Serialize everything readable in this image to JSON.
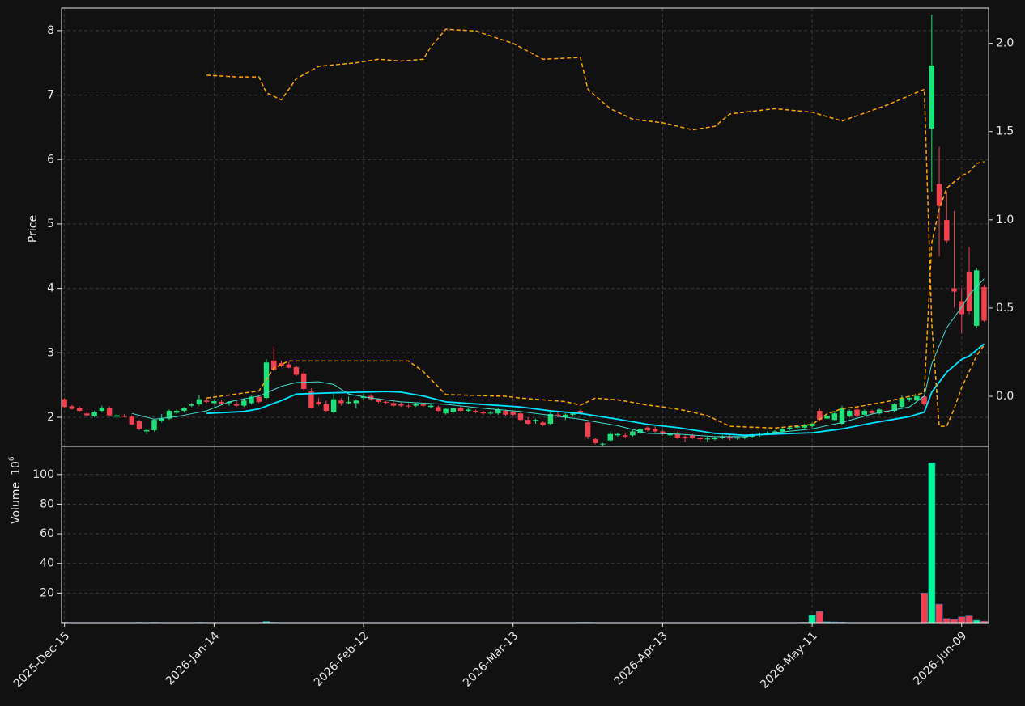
{
  "chart_data": {
    "type": "candlestick",
    "ylabel": "Price",
    "grid": true,
    "up_color": "#1de27a",
    "down_color": "#f2414f",
    "xlim": [
      -0.4,
      123.6
    ],
    "xticks": [
      {
        "value": 0,
        "label": "2025-Dec-15"
      },
      {
        "value": 20,
        "label": "2026-Jan-14"
      },
      {
        "value": 40,
        "label": "2026-Feb-12"
      },
      {
        "value": 60,
        "label": "2026-Mar-13"
      },
      {
        "value": 80,
        "label": "2026-Apr-13"
      },
      {
        "value": 100,
        "label": "2026-May-11"
      },
      {
        "value": 120,
        "label": "2026-Jun-09"
      }
    ],
    "ylim": [
      1.548,
      8.35
    ],
    "yticks": [
      2,
      3,
      4,
      5,
      6,
      7,
      8
    ],
    "y2lim": [
      -0.284,
      2.2
    ],
    "y2ticks": [
      {
        "value": 0,
        "label": "0.0"
      },
      0.5,
      {
        "value": 1,
        "label": "1.0"
      },
      1.5,
      {
        "value": 2,
        "label": "2.0"
      }
    ],
    "ohlc": [
      [
        2.28,
        2.3,
        2.15,
        2.16
      ],
      [
        2.17,
        2.19,
        2.12,
        2.13
      ],
      [
        2.15,
        2.17,
        2.08,
        2.1
      ],
      [
        2.06,
        2.08,
        2.02,
        2.03
      ],
      [
        2.02,
        2.1,
        2.0,
        2.08
      ],
      [
        2.1,
        2.18,
        2.08,
        2.15
      ],
      [
        2.15,
        2.17,
        2.02,
        2.03
      ],
      [
        2.01,
        2.05,
        1.98,
        2.03
      ],
      [
        2.02,
        2.05,
        2.0,
        2.01
      ],
      [
        2.01,
        2.03,
        1.88,
        1.89
      ],
      [
        1.94,
        1.96,
        1.8,
        1.82
      ],
      [
        1.78,
        1.82,
        1.74,
        1.8
      ],
      [
        1.8,
        1.98,
        1.78,
        1.96
      ],
      [
        1.95,
        2.05,
        1.92,
        1.98
      ],
      [
        1.98,
        2.12,
        1.96,
        2.1
      ],
      [
        2.07,
        2.12,
        2.05,
        2.1
      ],
      [
        2.1,
        2.16,
        2.08,
        2.14
      ],
      [
        2.18,
        2.22,
        2.16,
        2.2
      ],
      [
        2.2,
        2.35,
        2.18,
        2.28
      ],
      [
        2.26,
        2.3,
        2.22,
        2.24
      ],
      [
        2.22,
        2.26,
        2.2,
        2.25
      ],
      [
        2.24,
        2.27,
        2.2,
        2.21
      ],
      [
        2.22,
        2.25,
        2.18,
        2.24
      ],
      [
        2.2,
        2.28,
        2.16,
        2.18
      ],
      [
        2.18,
        2.3,
        2.16,
        2.26
      ],
      [
        2.22,
        2.34,
        2.2,
        2.32
      ],
      [
        2.32,
        2.34,
        2.22,
        2.24
      ],
      [
        2.3,
        2.9,
        2.28,
        2.85
      ],
      [
        2.88,
        3.1,
        2.72,
        2.74
      ],
      [
        2.84,
        2.88,
        2.78,
        2.8
      ],
      [
        2.82,
        2.86,
        2.76,
        2.77
      ],
      [
        2.78,
        2.8,
        2.64,
        2.66
      ],
      [
        2.68,
        2.72,
        2.4,
        2.44
      ],
      [
        2.4,
        2.45,
        2.14,
        2.15
      ],
      [
        2.24,
        2.3,
        2.18,
        2.2
      ],
      [
        2.2,
        2.26,
        2.08,
        2.1
      ],
      [
        2.08,
        2.36,
        2.06,
        2.28
      ],
      [
        2.26,
        2.3,
        2.18,
        2.22
      ],
      [
        2.22,
        2.32,
        2.2,
        2.24
      ],
      [
        2.22,
        2.28,
        2.14,
        2.26
      ],
      [
        2.3,
        2.36,
        2.26,
        2.32
      ],
      [
        2.33,
        2.36,
        2.26,
        2.28
      ],
      [
        2.28,
        2.3,
        2.22,
        2.24
      ],
      [
        2.24,
        2.26,
        2.2,
        2.23
      ],
      [
        2.22,
        2.25,
        2.16,
        2.18
      ],
      [
        2.2,
        2.24,
        2.16,
        2.18
      ],
      [
        2.18,
        2.22,
        2.14,
        2.17
      ],
      [
        2.18,
        2.22,
        2.16,
        2.2
      ],
      [
        2.2,
        2.22,
        2.16,
        2.18
      ],
      [
        2.16,
        2.2,
        2.14,
        2.18
      ],
      [
        2.16,
        2.18,
        2.08,
        2.1
      ],
      [
        2.06,
        2.14,
        2.04,
        2.13
      ],
      [
        2.08,
        2.15,
        2.06,
        2.14
      ],
      [
        2.15,
        2.17,
        2.08,
        2.1
      ],
      [
        2.1,
        2.14,
        2.08,
        2.12
      ],
      [
        2.1,
        2.12,
        2.06,
        2.08
      ],
      [
        2.08,
        2.1,
        2.04,
        2.06
      ],
      [
        2.06,
        2.1,
        2.04,
        2.07
      ],
      [
        2.06,
        2.14,
        2.04,
        2.12
      ],
      [
        2.1,
        2.12,
        2.02,
        2.04
      ],
      [
        2.08,
        2.1,
        2.02,
        2.04
      ],
      [
        2.06,
        2.08,
        1.94,
        1.96
      ],
      [
        1.96,
        2.0,
        1.88,
        1.9
      ],
      [
        1.94,
        1.98,
        1.9,
        1.96
      ],
      [
        1.92,
        1.94,
        1.86,
        1.88
      ],
      [
        1.9,
        2.08,
        1.88,
        2.05
      ],
      [
        2.04,
        2.08,
        2.0,
        2.02
      ],
      [
        2.0,
        2.06,
        1.96,
        2.04
      ],
      [
        2.04,
        2.08,
        2.02,
        2.06
      ],
      [
        2.1,
        2.12,
        2.04,
        2.06
      ],
      [
        1.92,
        1.96,
        1.66,
        1.7
      ],
      [
        1.66,
        1.68,
        1.58,
        1.6
      ],
      [
        1.58,
        1.6,
        1.56,
        1.59
      ],
      [
        1.64,
        1.78,
        1.62,
        1.74
      ],
      [
        1.72,
        1.76,
        1.7,
        1.74
      ],
      [
        1.72,
        1.76,
        1.68,
        1.7
      ],
      [
        1.72,
        1.8,
        1.7,
        1.78
      ],
      [
        1.76,
        1.84,
        1.74,
        1.82
      ],
      [
        1.84,
        1.86,
        1.78,
        1.8
      ],
      [
        1.82,
        1.86,
        1.76,
        1.78
      ],
      [
        1.78,
        1.8,
        1.72,
        1.74
      ],
      [
        1.72,
        1.76,
        1.68,
        1.74
      ],
      [
        1.74,
        1.78,
        1.66,
        1.68
      ],
      [
        1.7,
        1.72,
        1.62,
        1.69
      ],
      [
        1.72,
        1.74,
        1.66,
        1.68
      ],
      [
        1.68,
        1.7,
        1.62,
        1.66
      ],
      [
        1.66,
        1.7,
        1.62,
        1.67
      ],
      [
        1.66,
        1.7,
        1.64,
        1.68
      ],
      [
        1.68,
        1.72,
        1.66,
        1.7
      ],
      [
        1.7,
        1.72,
        1.64,
        1.67
      ],
      [
        1.67,
        1.7,
        1.65,
        1.69
      ],
      [
        1.69,
        1.72,
        1.66,
        1.7
      ],
      [
        1.7,
        1.74,
        1.68,
        1.72
      ],
      [
        1.72,
        1.76,
        1.7,
        1.74
      ],
      [
        1.74,
        1.78,
        1.72,
        1.75
      ],
      [
        1.76,
        1.8,
        1.74,
        1.78
      ],
      [
        1.78,
        1.84,
        1.76,
        1.82
      ],
      [
        1.82,
        1.86,
        1.8,
        1.84
      ],
      [
        1.84,
        1.88,
        1.82,
        1.86
      ],
      [
        1.84,
        1.9,
        1.82,
        1.88
      ],
      [
        1.86,
        1.92,
        1.84,
        1.9
      ],
      [
        2.1,
        2.14,
        1.94,
        1.96
      ],
      [
        1.98,
        2.05,
        1.96,
        2.02
      ],
      [
        1.96,
        2.1,
        1.94,
        2.06
      ],
      [
        1.9,
        2.18,
        1.88,
        2.15
      ],
      [
        2.02,
        2.12,
        2.0,
        2.1
      ],
      [
        2.12,
        2.14,
        2.0,
        2.02
      ],
      [
        2.04,
        2.12,
        2.02,
        2.1
      ],
      [
        2.1,
        2.12,
        2.04,
        2.06
      ],
      [
        2.06,
        2.14,
        2.04,
        2.12
      ],
      [
        2.1,
        2.14,
        2.06,
        2.08
      ],
      [
        2.1,
        2.22,
        2.08,
        2.2
      ],
      [
        2.16,
        2.34,
        2.14,
        2.3
      ],
      [
        2.28,
        2.32,
        2.24,
        2.3
      ],
      [
        2.26,
        2.36,
        2.24,
        2.33
      ],
      [
        2.32,
        2.34,
        2.18,
        2.2
      ],
      [
        6.48,
        8.25,
        5.5,
        7.46
      ],
      [
        5.62,
        6.2,
        4.5,
        5.28
      ],
      [
        5.06,
        5.5,
        4.7,
        4.74
      ],
      [
        4.0,
        5.2,
        3.7,
        3.95
      ],
      [
        3.8,
        4.0,
        3.3,
        3.6
      ],
      [
        4.26,
        4.64,
        3.6,
        3.65
      ],
      [
        3.42,
        4.32,
        3.38,
        4.28
      ],
      [
        4.02,
        4.05,
        3.48,
        3.5
      ]
    ],
    "series": [
      {
        "color": "#3fe0d0",
        "width": 1,
        "dash": false,
        "x": [
          9,
          12,
          15,
          19,
          22,
          26,
          29,
          31,
          34,
          36,
          38,
          41,
          45,
          51,
          56,
          61,
          65,
          69,
          74,
          78,
          82,
          87,
          91,
          95,
          100,
          104,
          108,
          113,
          115,
          116,
          118,
          120,
          121,
          123
        ],
        "values": [
          2.06,
          1.97,
          2.01,
          2.1,
          2.24,
          2.33,
          2.48,
          2.54,
          2.55,
          2.51,
          2.36,
          2.3,
          2.24,
          2.2,
          2.14,
          2.09,
          2.03,
          1.97,
          1.87,
          1.75,
          1.74,
          1.7,
          1.7,
          1.76,
          1.82,
          1.92,
          2.05,
          2.16,
          2.33,
          2.83,
          3.39,
          3.71,
          3.9,
          4.15
        ]
      },
      {
        "color": "#00e5ff",
        "width": 1.8,
        "dash": false,
        "x": [
          19,
          24,
          26,
          29,
          31,
          36,
          40,
          43,
          45,
          48,
          51,
          56,
          61,
          65,
          69,
          74,
          78,
          82,
          87,
          91,
          95,
          100,
          104,
          108,
          113,
          115,
          116,
          118,
          120,
          121,
          123
        ],
        "values": [
          2.06,
          2.09,
          2.13,
          2.26,
          2.36,
          2.38,
          2.39,
          2.4,
          2.39,
          2.33,
          2.24,
          2.2,
          2.16,
          2.1,
          2.06,
          1.97,
          1.89,
          1.84,
          1.75,
          1.72,
          1.74,
          1.76,
          1.82,
          1.91,
          2.01,
          2.08,
          2.39,
          2.7,
          2.9,
          2.95,
          3.14
        ]
      },
      {
        "color": "#ffa500",
        "width": 1.5,
        "dash": true,
        "axis": "y2",
        "x": [
          19,
          23,
          26,
          27,
          29,
          31,
          34,
          39,
          42,
          45,
          48,
          49,
          51,
          55,
          60,
          64,
          69,
          70,
          73,
          76,
          80,
          84,
          87,
          89,
          95,
          100,
          104,
          110,
          115,
          116,
          117,
          118,
          119,
          120,
          121,
          122,
          123
        ],
        "values": [
          1.82,
          1.81,
          1.81,
          1.72,
          1.68,
          1.8,
          1.87,
          1.89,
          1.91,
          1.9,
          1.91,
          1.98,
          2.08,
          2.07,
          2.0,
          1.91,
          1.92,
          1.74,
          1.63,
          1.57,
          1.55,
          1.51,
          1.53,
          1.6,
          1.63,
          1.61,
          1.56,
          1.65,
          1.74,
          0.41,
          -0.17,
          -0.17,
          -0.07,
          0.05,
          0.14,
          0.23,
          0.29
        ]
      },
      {
        "color": "#ffa500",
        "width": 1.5,
        "dash": true,
        "axis": "y2",
        "x": [
          19,
          26,
          28,
          30,
          37,
          46,
          48,
          51,
          59,
          61,
          67,
          69,
          71,
          74,
          78,
          80,
          83,
          86,
          89,
          95,
          100,
          102,
          104,
          106,
          110,
          114,
          115,
          116,
          117,
          118,
          120,
          121,
          122,
          123
        ],
        "values": [
          -0.01,
          0.03,
          0.16,
          0.2,
          0.2,
          0.2,
          0.14,
          0.01,
          0,
          -0.01,
          -0.03,
          -0.05,
          -0.01,
          -0.02,
          -0.05,
          -0.06,
          -0.08,
          -0.11,
          -0.17,
          -0.18,
          -0.16,
          -0.1,
          -0.07,
          -0.06,
          -0.03,
          0.01,
          0.02,
          0.87,
          1.06,
          1.18,
          1.25,
          1.27,
          1.32,
          1.33
        ]
      }
    ],
    "volume": {
      "ylabel": "Volume",
      "scale_base": "10",
      "scale_exponent": "6",
      "up_color": "#00fa9a",
      "down_color": "#f2414f",
      "ylim": [
        0,
        119
      ],
      "yticks": [
        20,
        40,
        60,
        80,
        100
      ],
      "values": [
        0.3,
        0.2,
        0.2,
        0.2,
        0.2,
        0.2,
        0.2,
        0.2,
        0.2,
        0.2,
        0.3,
        0.2,
        0.3,
        0.2,
        0.2,
        0.2,
        0.2,
        0.2,
        0.3,
        0.2,
        0.2,
        0.2,
        0.2,
        0.2,
        0.2,
        0.2,
        0.2,
        0.8,
        0.3,
        0.2,
        0.2,
        0.2,
        0.2,
        0.2,
        0.2,
        0.2,
        0.2,
        0.2,
        0.2,
        0.2,
        0.2,
        0.2,
        0.2,
        0.2,
        0.2,
        0.2,
        0.2,
        0.2,
        0.2,
        0.2,
        0.2,
        0.2,
        0.2,
        0.2,
        0.2,
        0.2,
        0.2,
        0.2,
        0.2,
        0.2,
        0.2,
        0.2,
        0.2,
        0.2,
        0.2,
        0.2,
        0.2,
        0.2,
        0.2,
        0.3,
        0.3,
        0.2,
        0.2,
        0.2,
        0.2,
        0.2,
        0.2,
        0.2,
        0.2,
        0.2,
        0.2,
        0.2,
        0.2,
        0.2,
        0.2,
        0.2,
        0.2,
        0.2,
        0.2,
        0.2,
        0.2,
        0.2,
        0.2,
        0.2,
        0.2,
        0.2,
        0.2,
        0.2,
        0.2,
        0.3,
        5,
        7.5,
        0.6,
        0.5,
        0.4,
        0.2,
        0.2,
        0.2,
        0.2,
        0.2,
        0.2,
        0.2,
        0.2,
        0.2,
        0.2,
        20,
        108,
        12.5,
        2.8,
        2.2,
        4,
        4.6,
        1.6,
        1
      ]
    }
  }
}
